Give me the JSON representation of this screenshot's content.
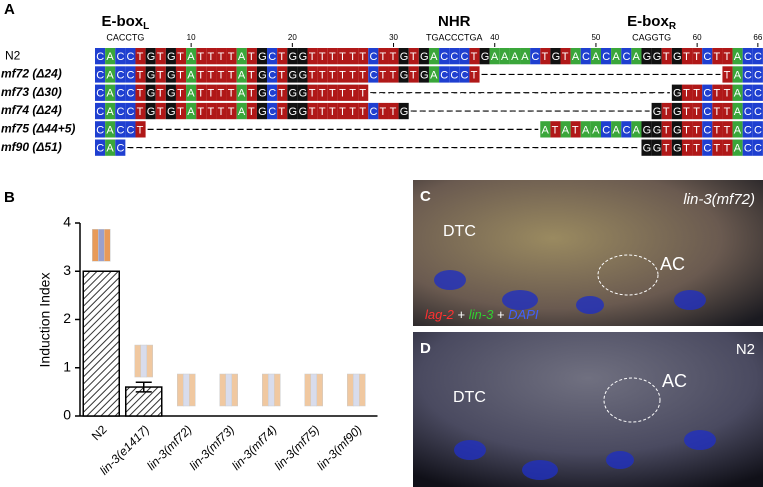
{
  "panel_letters": [
    "A",
    "B",
    "C",
    "D"
  ],
  "alignment": {
    "motifs": [
      {
        "name": "E-box",
        "sub": "L",
        "seq": "CACCTG",
        "start": 1
      },
      {
        "name": "NHR",
        "seq": "TGACCCTGA",
        "start": 32
      },
      {
        "name": "E-box",
        "sub": "R",
        "seq": "CAGGTG",
        "start": 53
      }
    ],
    "ruler": [
      10,
      20,
      30,
      40,
      50,
      60,
      66
    ],
    "base_colors": {
      "A": "#3aa63a",
      "C": "#1f3fd0",
      "G": "#111111",
      "T": "#b01818"
    },
    "rows": [
      {
        "label": "N2",
        "seq": "CACCTGTGTATTTTATGCTGGTTTTTTCTTGTGACCCTGAAAACTGTACACACAGGTGTTCTTACC"
      },
      {
        "label": "mf72 (Δ24)",
        "seq": "CACCTGTGTATTTTATGCTGGTTTTTTCTTGTGACCCT------------------------TACC"
      },
      {
        "label": "mf73 (Δ30)",
        "seq": "CACCTGTGTATTTTATGCTGGTTTTTT------------------------------GTTCTTACC"
      },
      {
        "label": "mf74 (Δ24)",
        "seq": "CACCTGTGTATTTTATGCTGGTTTTTTCTTG------------------------GTGTTCTTACC"
      },
      {
        "label": "mf75 (Δ44+5)",
        "seq": "CACCT---------------------------------------ATATAACACAGGTGTTCTTACC"
      },
      {
        "label": "mf90 (Δ51)",
        "seq": "CAC---------------------------------------------------GGTGTTCTTACC"
      }
    ]
  },
  "chart_data": {
    "type": "bar",
    "y_label": "Induction Index",
    "categories": [
      "N2",
      "lin-3(e1417)",
      "lin-3(mf72)",
      "lin-3(mf73)",
      "lin-3(mf74)",
      "lin-3(mf75)",
      "lin-3(mf90)"
    ],
    "values": [
      3,
      0.6,
      0,
      0,
      0,
      0,
      0
    ],
    "errors": [
      null,
      0.1,
      null,
      null,
      null,
      null,
      null
    ],
    "ylim": [
      0,
      4
    ],
    "yticks": [
      0,
      1,
      2,
      3,
      4
    ],
    "color": "#555555"
  },
  "images": [
    {
      "title": "lin-3(mf72)",
      "labels": [
        "DTC",
        "AC"
      ],
      "stain": [
        {
          "text": "lag-2",
          "color": "#ff3030"
        },
        {
          "text": " + ",
          "color": "#ffffff"
        },
        {
          "text": "lin-3",
          "color": "#30d030"
        },
        {
          "text": " + ",
          "color": "#ffffff"
        },
        {
          "text": "DAPI",
          "color": "#4060ff"
        }
      ]
    },
    {
      "title": "N2",
      "labels": [
        "DTC",
        "AC"
      ]
    }
  ]
}
